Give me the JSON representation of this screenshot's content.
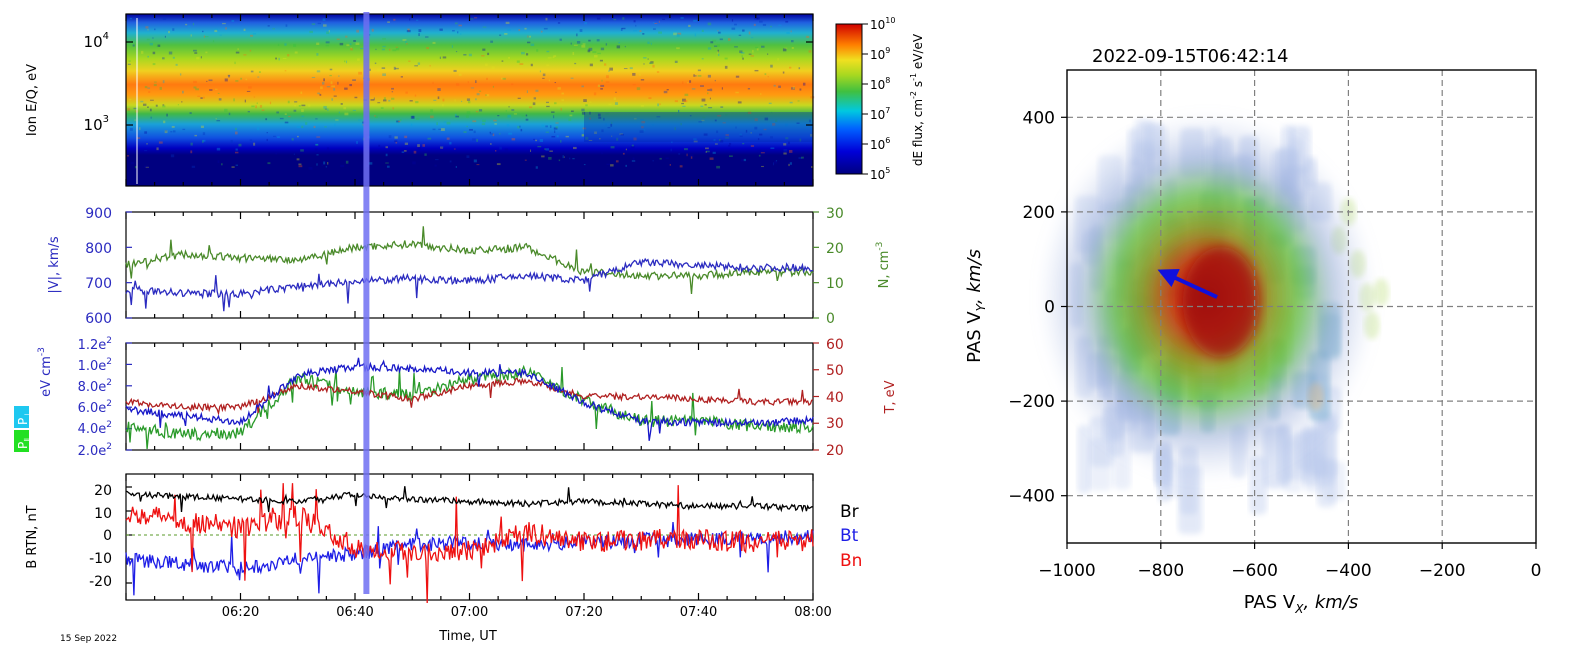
{
  "date_label": "15 Sep 2022",
  "colors": {
    "vel": "#2b2bc0",
    "dens": "#4a8a2a",
    "temp": "#b02020",
    "br": "#000000",
    "bt": "#1e1ee6",
    "bn": "#ee1111",
    "marker": "#6f6ff2",
    "arrow": "#1010dd"
  },
  "chart_data": [
    {
      "id": "spectrogram",
      "type": "heatmap",
      "ylabel": "Ion E/Q, eV",
      "ytick_labels": [
        "10",
        "10"
      ],
      "ytick_exps": [
        "4",
        "3"
      ],
      "ylim": [
        250,
        20000
      ],
      "colorbar": {
        "label": "dE flux, cm",
        "label_sup1": "-2",
        "label_mid": " s",
        "label_sup2": "-1",
        "label_tail": " eV/eV",
        "tick_base": "10",
        "tick_exps": [
          "10",
          "9",
          "8",
          "7",
          "6",
          "5"
        ],
        "range": [
          100000,
          10000000000
        ]
      },
      "time_range": [
        "06:00",
        "08:00"
      ],
      "peak_energy_eV": 2500
    },
    {
      "id": "velocity-density",
      "type": "line",
      "ylabel_left": "|V|, km/s",
      "ylabel_right": "N, cm",
      "ylabel_right_sup": "-3",
      "ylim_left": [
        600,
        900
      ],
      "yticks_left": [
        "600",
        "700",
        "800",
        "900"
      ],
      "ylim_right": [
        0,
        30
      ],
      "yticks_right": [
        "0",
        "10",
        "20",
        "30"
      ],
      "x": [
        "06:00",
        "06:10",
        "06:20",
        "06:30",
        "06:40",
        "06:50",
        "07:00",
        "07:10",
        "07:20",
        "07:30",
        "07:40",
        "07:50",
        "08:00"
      ],
      "series": [
        {
          "name": "|V|",
          "axis": "left",
          "values": [
            680,
            670,
            668,
            690,
            702,
            712,
            705,
            720,
            706,
            758,
            748,
            742,
            743
          ]
        },
        {
          "name": "N",
          "axis": "right",
          "values": [
            15,
            18,
            17,
            16.5,
            20,
            21,
            19,
            20,
            13,
            12,
            12,
            13,
            13
          ]
        }
      ]
    },
    {
      "id": "pressure-temperature",
      "type": "line",
      "ylabel_left": "eV cm",
      "ylabel_left_sup": "-3",
      "legend_boxes": [
        "P",
        "P"
      ],
      "legend_subs": [
        "⊥",
        "∥"
      ],
      "ylabel_right": "T, eV",
      "ylim_left": [
        200,
        1200
      ],
      "yticks_left_base": [
        "2.0e",
        "4.0e",
        "6.0e",
        "8.0e",
        "1.0e",
        "1.2e"
      ],
      "yticks_left_exp": "2",
      "ylim_right": [
        20,
        60
      ],
      "yticks_right": [
        "20",
        "30",
        "40",
        "50",
        "60"
      ],
      "x": [
        "06:00",
        "06:10",
        "06:20",
        "06:30",
        "06:40",
        "06:50",
        "07:00",
        "07:10",
        "07:20",
        "07:30",
        "07:40",
        "07:50",
        "08:00"
      ],
      "series": [
        {
          "name": "P⊥",
          "axis": "left",
          "values": [
            580,
            520,
            460,
            900,
            980,
            960,
            920,
            920,
            640,
            470,
            460,
            450,
            480
          ]
        },
        {
          "name": "P∥",
          "axis": "left",
          "values": [
            420,
            340,
            360,
            880,
            740,
            720,
            860,
            930,
            660,
            470,
            470,
            420,
            420
          ]
        },
        {
          "name": "T",
          "axis": "right",
          "values": [
            38,
            36,
            36,
            44,
            42,
            39,
            44,
            46,
            40,
            40,
            39,
            38,
            38
          ]
        }
      ]
    },
    {
      "id": "magnetic-field",
      "type": "line",
      "ylabel": "B RTN, nT",
      "ylim": [
        -25,
        25
      ],
      "yticks": [
        "20",
        "10",
        "0",
        "-10",
        "-20"
      ],
      "xlabel": "Time, UT",
      "xtick_labels": [
        "06:20",
        "06:40",
        "07:00",
        "07:20",
        "07:40",
        "08:00"
      ],
      "x": [
        "06:00",
        "06:10",
        "06:20",
        "06:30",
        "06:40",
        "06:50",
        "07:00",
        "07:10",
        "07:20",
        "07:30",
        "07:40",
        "07:50",
        "08:00"
      ],
      "series": [
        {
          "name": "Br",
          "values": [
            17,
            16,
            15,
            14,
            17,
            15,
            14,
            13,
            14,
            13,
            12,
            12,
            11
          ]
        },
        {
          "name": "Bt",
          "values": [
            -10,
            -12,
            -14,
            -10,
            -8,
            -4,
            -3,
            -4,
            -3,
            -2,
            -2,
            -1,
            -1
          ]
        },
        {
          "name": "Bn",
          "values": [
            10,
            6,
            3,
            8,
            -5,
            -7,
            -6,
            1,
            -3,
            -2,
            -2,
            -3,
            -2
          ]
        }
      ],
      "legend": [
        "Br",
        "Bt",
        "Bn"
      ]
    },
    {
      "id": "velocity-distribution",
      "type": "heatmap",
      "title": "2022-09-15T06:42:14",
      "xlabel": "PAS V",
      "xlabel_sub": "X",
      "xlabel_unit": ", km/s",
      "ylabel": "PAS V",
      "ylabel_sub": "Y",
      "ylabel_unit": ", km/s",
      "xlim": [
        -1000,
        0
      ],
      "ylim": [
        -500,
        500
      ],
      "xtick_labels": [
        "−1000",
        "−800",
        "−600",
        "−400",
        "−200",
        "0"
      ],
      "ytick_labels": [
        "400",
        "200",
        "0",
        "−200",
        "−400"
      ],
      "peak": {
        "vx": -680,
        "vy": 20
      },
      "arrow": {
        "from": [
          -680,
          20
        ],
        "to": [
          -800,
          75
        ]
      }
    }
  ],
  "marker_time": "06:42"
}
